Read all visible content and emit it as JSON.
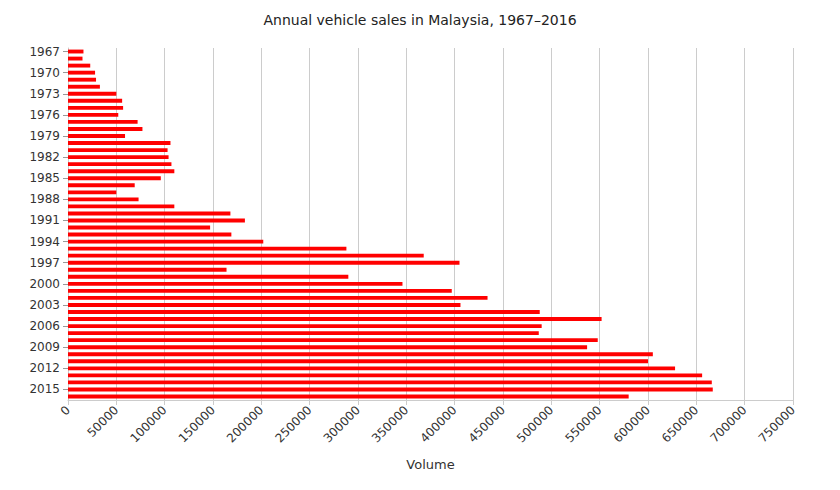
{
  "chart_data": {
    "type": "bar",
    "title": "Annual vehicle sales in Malaysia, 1967–2016",
    "orientation": "horizontal",
    "x_label": "Volume",
    "categories": [
      "1967",
      null,
      null,
      "1970",
      null,
      null,
      "1973",
      null,
      null,
      "1976",
      null,
      null,
      "1979",
      null,
      null,
      "1982",
      null,
      null,
      "1985",
      null,
      null,
      "1988",
      null,
      null,
      "1991",
      null,
      null,
      "1994",
      null,
      null,
      "1997",
      null,
      null,
      "2000",
      null,
      null,
      "2003",
      null,
      null,
      "2006",
      null,
      null,
      "2009",
      null,
      null,
      "2012",
      null,
      null,
      "2015",
      null
    ],
    "values": [
      16000,
      15000,
      23000,
      28000,
      29000,
      33000,
      50000,
      56000,
      57000,
      52000,
      72000,
      77000,
      59000,
      106000,
      103000,
      104000,
      107000,
      110000,
      96000,
      69000,
      50000,
      73000,
      110000,
      168000,
      183000,
      147000,
      169000,
      202000,
      288000,
      368000,
      405000,
      164000,
      290000,
      346000,
      397000,
      434000,
      406000,
      488000,
      552000,
      490000,
      487000,
      548000,
      537000,
      605000,
      600000,
      628000,
      656000,
      666000,
      667000,
      580000
    ],
    "color": "#ff0000",
    "xlim": [
      0,
      750000
    ],
    "xticks": [
      0,
      50000,
      100000,
      150000,
      200000,
      250000,
      300000,
      350000,
      400000,
      450000,
      500000,
      550000,
      600000,
      650000,
      700000,
      750000
    ],
    "grid": true
  }
}
